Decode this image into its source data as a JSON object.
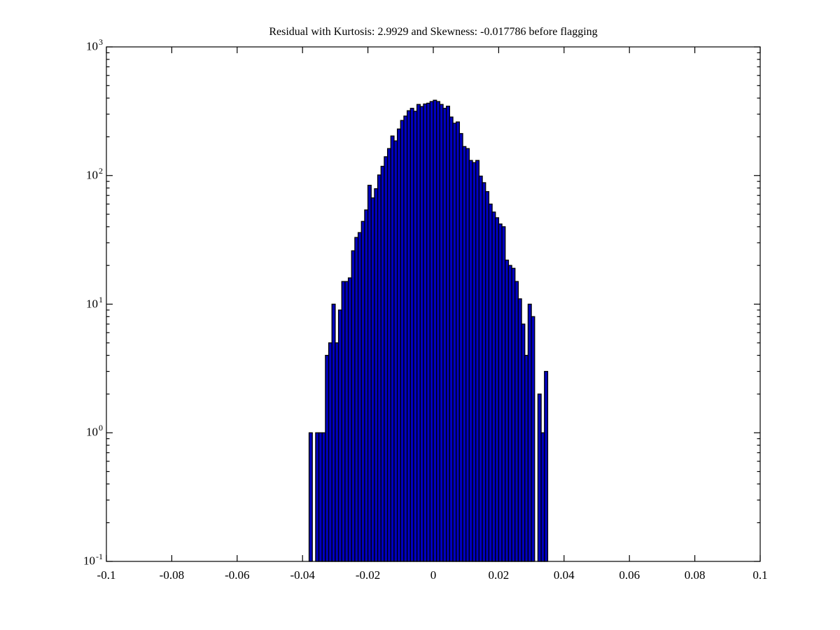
{
  "figure": {
    "title": "Residual with Kurtosis: 2.9929 and Skewness: -0.017786 before flagging",
    "background": "#ffffff"
  },
  "chart_data": {
    "type": "bar",
    "subtype": "histogram",
    "title": "Residual with Kurtosis: 2.9929 and Skewness: -0.017786 before flagging",
    "xlabel": "",
    "ylabel": "",
    "kurtosis": 2.9929,
    "skewness": -0.017786,
    "grid": false,
    "legend": null,
    "y_scale": "log",
    "xlim": [
      -0.1,
      0.1
    ],
    "ylim_log10": [
      -1,
      3
    ],
    "x_tick_values": [
      -0.1,
      -0.08,
      -0.06,
      -0.04,
      -0.02,
      0,
      0.02,
      0.04,
      0.06,
      0.08,
      0.1
    ],
    "x_tick_labels": [
      "-0.1",
      "-0.08",
      "-0.06",
      "-0.04",
      "-0.02",
      "0",
      "0.02",
      "0.04",
      "0.06",
      "0.08",
      "0.1"
    ],
    "y_tick_exponents": [
      -1,
      0,
      1,
      2,
      3
    ],
    "y_tick_base": "10",
    "y_minor_multiples": [
      2,
      3,
      4,
      5,
      6,
      7,
      8,
      9
    ],
    "bin_width": 0.001,
    "first_bin_center": -0.0375,
    "counts": [
      1,
      0,
      1,
      1,
      1,
      4,
      5,
      10,
      5,
      9,
      15,
      15,
      16,
      26,
      33,
      36,
      44,
      54,
      84,
      67,
      79,
      101,
      118,
      140,
      162,
      203,
      186,
      230,
      268,
      290,
      319,
      333,
      316,
      357,
      344,
      360,
      365,
      376,
      385,
      376,
      357,
      333,
      346,
      285,
      255,
      261,
      212,
      168,
      162,
      131,
      126,
      131,
      99,
      88,
      75,
      60,
      52,
      47,
      42,
      40,
      22,
      20,
      19,
      15,
      11,
      7,
      4,
      10,
      8,
      0,
      2,
      1,
      3
    ],
    "colors": {
      "bar_fill": "#0000c0",
      "bar_edge": "#000000",
      "axis": "#000000",
      "text": "#000000",
      "background": "#ffffff"
    }
  }
}
